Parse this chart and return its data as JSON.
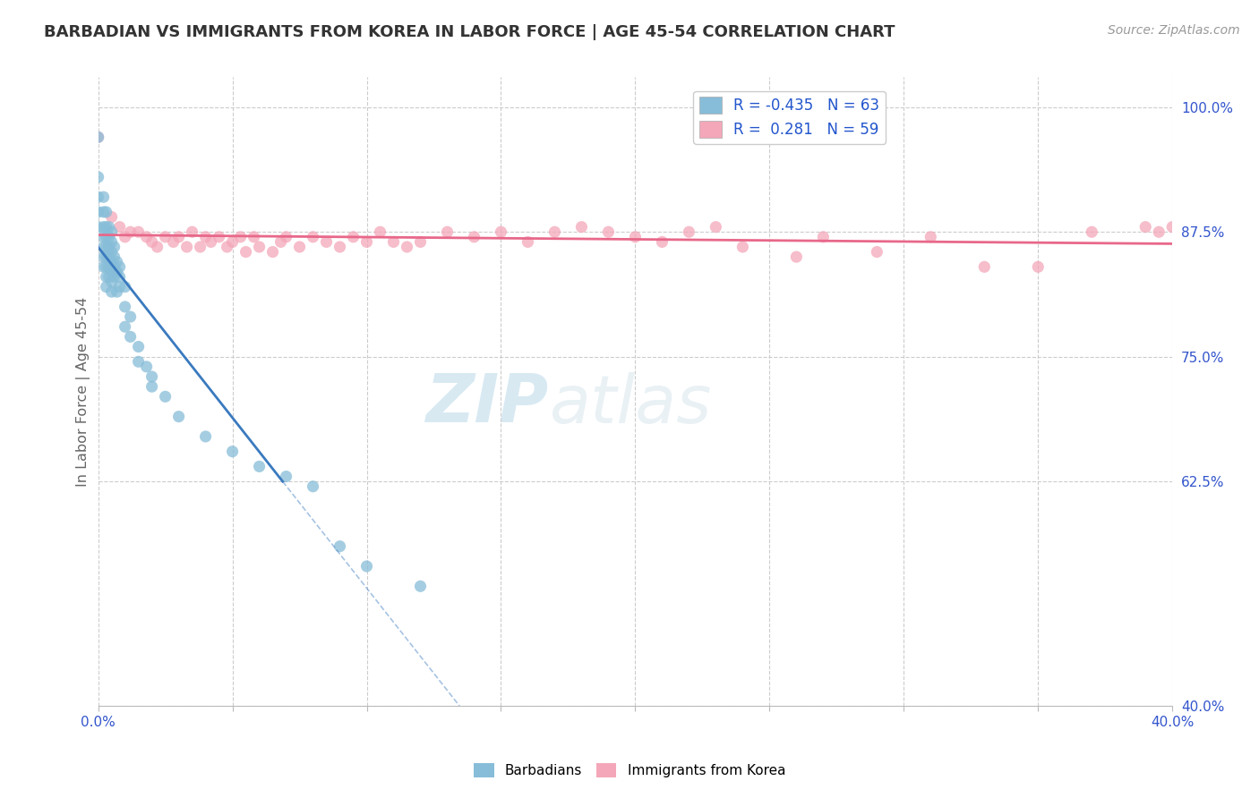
{
  "title": "BARBADIAN VS IMMIGRANTS FROM KOREA IN LABOR FORCE | AGE 45-54 CORRELATION CHART",
  "source_text": "Source: ZipAtlas.com",
  "ylabel": "In Labor Force | Age 45-54",
  "r_barbadian": -0.435,
  "n_barbadian": 63,
  "r_korea": 0.281,
  "n_korea": 59,
  "color_barbadian": "#87bdd8",
  "color_korea": "#f4a7b9",
  "trend_color_barbadian": "#3a7abf",
  "trend_color_korea": "#e8688a",
  "watermark_zip": "ZIP",
  "watermark_atlas": "atlas",
  "x_min": 0.0,
  "x_max": 0.4,
  "y_min": 0.4,
  "y_max": 1.03,
  "x_ticks": [
    0.0,
    0.05,
    0.1,
    0.15,
    0.2,
    0.25,
    0.3,
    0.35,
    0.4
  ],
  "y_ticks_right": [
    0.4,
    0.625,
    0.75,
    0.875,
    1.0
  ],
  "y_tick_labels_right": [
    "40.0%",
    "62.5%",
    "75.0%",
    "87.5%",
    "100.0%"
  ],
  "barbadian_x": [
    0.0,
    0.0,
    0.0,
    0.0,
    0.0,
    0.002,
    0.002,
    0.002,
    0.002,
    0.002,
    0.002,
    0.002,
    0.003,
    0.003,
    0.003,
    0.003,
    0.003,
    0.003,
    0.003,
    0.003,
    0.004,
    0.004,
    0.004,
    0.004,
    0.004,
    0.004,
    0.005,
    0.005,
    0.005,
    0.005,
    0.005,
    0.005,
    0.005,
    0.006,
    0.006,
    0.006,
    0.006,
    0.007,
    0.007,
    0.007,
    0.008,
    0.008,
    0.008,
    0.01,
    0.01,
    0.01,
    0.012,
    0.012,
    0.015,
    0.015,
    0.018,
    0.02,
    0.02,
    0.025,
    0.03,
    0.04,
    0.05,
    0.06,
    0.07,
    0.08,
    0.09,
    0.1,
    0.12
  ],
  "barbadian_y": [
    0.97,
    0.93,
    0.91,
    0.895,
    0.88,
    0.91,
    0.895,
    0.88,
    0.87,
    0.86,
    0.85,
    0.84,
    0.895,
    0.88,
    0.87,
    0.86,
    0.85,
    0.84,
    0.83,
    0.82,
    0.88,
    0.87,
    0.86,
    0.85,
    0.84,
    0.83,
    0.875,
    0.865,
    0.855,
    0.845,
    0.835,
    0.825,
    0.815,
    0.86,
    0.85,
    0.84,
    0.83,
    0.845,
    0.835,
    0.815,
    0.84,
    0.83,
    0.82,
    0.82,
    0.8,
    0.78,
    0.79,
    0.77,
    0.76,
    0.745,
    0.74,
    0.73,
    0.72,
    0.71,
    0.69,
    0.67,
    0.655,
    0.64,
    0.63,
    0.62,
    0.56,
    0.54,
    0.52
  ],
  "korea_x": [
    0.0,
    0.005,
    0.008,
    0.01,
    0.012,
    0.015,
    0.018,
    0.02,
    0.022,
    0.025,
    0.028,
    0.03,
    0.033,
    0.035,
    0.038,
    0.04,
    0.042,
    0.045,
    0.048,
    0.05,
    0.053,
    0.055,
    0.058,
    0.06,
    0.065,
    0.068,
    0.07,
    0.075,
    0.08,
    0.085,
    0.09,
    0.095,
    0.1,
    0.105,
    0.11,
    0.115,
    0.12,
    0.13,
    0.14,
    0.15,
    0.16,
    0.17,
    0.18,
    0.19,
    0.2,
    0.21,
    0.22,
    0.23,
    0.24,
    0.26,
    0.27,
    0.29,
    0.31,
    0.33,
    0.35,
    0.37,
    0.39,
    0.395,
    0.4
  ],
  "korea_y": [
    0.97,
    0.89,
    0.88,
    0.87,
    0.875,
    0.875,
    0.87,
    0.865,
    0.86,
    0.87,
    0.865,
    0.87,
    0.86,
    0.875,
    0.86,
    0.87,
    0.865,
    0.87,
    0.86,
    0.865,
    0.87,
    0.855,
    0.87,
    0.86,
    0.855,
    0.865,
    0.87,
    0.86,
    0.87,
    0.865,
    0.86,
    0.87,
    0.865,
    0.875,
    0.865,
    0.86,
    0.865,
    0.875,
    0.87,
    0.875,
    0.865,
    0.875,
    0.88,
    0.875,
    0.87,
    0.865,
    0.875,
    0.88,
    0.86,
    0.85,
    0.87,
    0.855,
    0.87,
    0.84,
    0.84,
    0.875,
    0.88,
    0.875,
    0.88
  ],
  "legend_r_color": "#333333",
  "legend_n_color": "#2255cc",
  "grid_color": "#cccccc",
  "axis_label_color": "#3355cc",
  "title_color": "#333333",
  "source_color": "#999999"
}
